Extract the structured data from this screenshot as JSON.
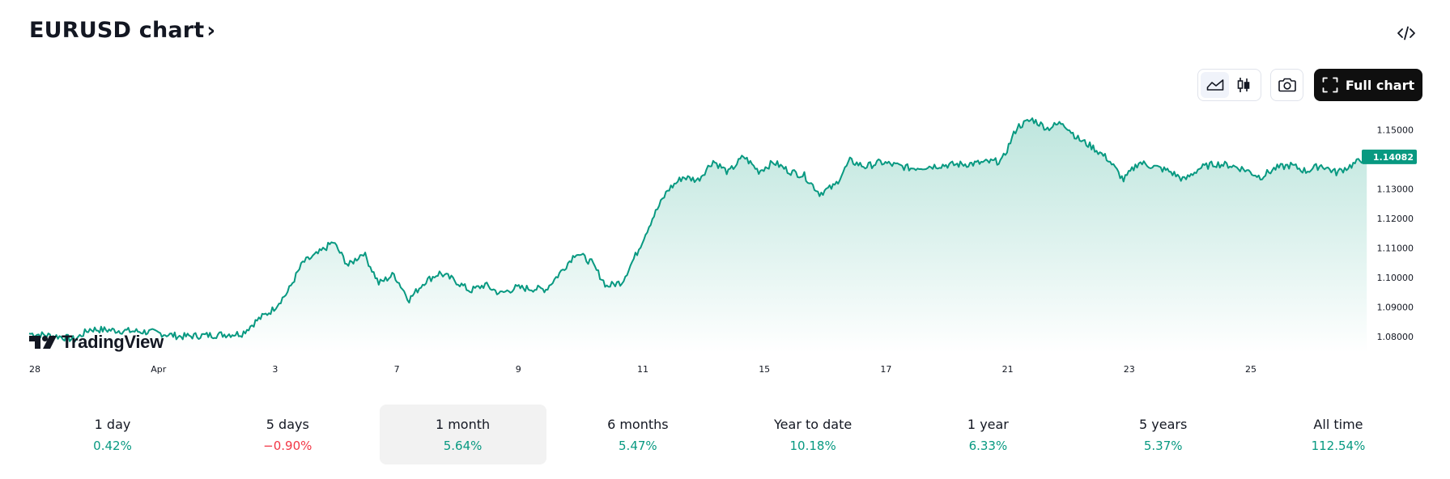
{
  "header": {
    "title": "EURUSD chart",
    "chevron": "›"
  },
  "toolbar": {
    "embed_icon": "code-icon",
    "line_chart_icon": "area-chart-icon",
    "candle_chart_icon": "candlestick-icon",
    "snapshot_icon": "camera-icon",
    "full_chart_label": "Full chart",
    "full_chart_icon": "fullscreen-icon"
  },
  "logo": {
    "text": "TradingView"
  },
  "colors": {
    "accent": "#089981",
    "negative": "#f23645",
    "area_top": "#b7e3da",
    "area_bottom": "#ffffff"
  },
  "chart_data": {
    "type": "area",
    "title": "",
    "y_ticks": [
      "1.15000",
      "1.13000",
      "1.12000",
      "1.11000",
      "1.10000",
      "1.09000",
      "1.08000"
    ],
    "x_ticks": [
      "28",
      "Apr",
      "3",
      "7",
      "9",
      "11",
      "15",
      "17",
      "21",
      "23",
      "25"
    ],
    "ylim": [
      1.0745,
      1.1545
    ],
    "last_price": 1.14082,
    "last_price_label": "1.14082",
    "grid": false,
    "series": [
      {
        "points": [
          [
            "2025-03-28",
            1.081
          ],
          [
            "2025-03-28 12:00",
            1.08
          ],
          [
            "2025-03-28 18:00",
            1.079
          ],
          [
            "2025-03-31",
            1.0825
          ],
          [
            "2025-04-01",
            1.0815
          ],
          [
            "2025-04-01 12:00",
            1.08
          ],
          [
            "2025-04-02",
            1.0805
          ],
          [
            "2025-04-02 12:00",
            1.081
          ],
          [
            "2025-04-02 18:00",
            1.0855
          ],
          [
            "2025-04-03",
            1.089
          ],
          [
            "2025-04-03 06:00",
            1.095
          ],
          [
            "2025-04-03 12:00",
            1.105
          ],
          [
            "2025-04-03 18:00",
            1.108
          ],
          [
            "2025-04-04",
            1.112
          ],
          [
            "2025-04-04 06:00",
            1.104
          ],
          [
            "2025-04-04 12:00",
            1.1085
          ],
          [
            "2025-04-04 18:00",
            1.098
          ],
          [
            "2025-04-07",
            1.101
          ],
          [
            "2025-04-07 06:00",
            1.0925
          ],
          [
            "2025-04-07 12:00",
            1.0985
          ],
          [
            "2025-04-07 18:00",
            1.1015
          ],
          [
            "2025-04-08",
            1.099
          ],
          [
            "2025-04-08 06:00",
            1.0955
          ],
          [
            "2025-04-08 12:00",
            1.0975
          ],
          [
            "2025-04-08 18:00",
            1.0945
          ],
          [
            "2025-04-09",
            1.0965
          ],
          [
            "2025-04-09 12:00",
            1.096
          ],
          [
            "2025-04-09 18:00",
            1.102
          ],
          [
            "2025-04-10",
            1.1085
          ],
          [
            "2025-04-10 06:00",
            1.105
          ],
          [
            "2025-04-10 12:00",
            1.097
          ],
          [
            "2025-04-10 18:00",
            1.0985
          ],
          [
            "2025-04-11",
            1.1085
          ],
          [
            "2025-04-11 06:00",
            1.12
          ],
          [
            "2025-04-11 12:00",
            1.1295
          ],
          [
            "2025-04-11 18:00",
            1.134
          ],
          [
            "2025-04-14",
            1.133
          ],
          [
            "2025-04-14 06:00",
            1.1395
          ],
          [
            "2025-04-14 12:00",
            1.1355
          ],
          [
            "2025-04-14 18:00",
            1.141
          ],
          [
            "2025-04-15",
            1.136
          ],
          [
            "2025-04-15 06:00",
            1.139
          ],
          [
            "2025-04-15 12:00",
            1.136
          ],
          [
            "2025-04-15 18:00",
            1.1345
          ],
          [
            "2025-04-16",
            1.1285
          ],
          [
            "2025-04-16 06:00",
            1.131
          ],
          [
            "2025-04-16 12:00",
            1.1395
          ],
          [
            "2025-04-16 18:00",
            1.1375
          ],
          [
            "2025-04-17",
            1.139
          ],
          [
            "2025-04-17 06:00",
            1.138
          ],
          [
            "2025-04-17 12:00",
            1.137
          ],
          [
            "2025-04-17 18:00",
            1.1375
          ],
          [
            "2025-04-18",
            1.138
          ],
          [
            "2025-04-18 12:00",
            1.1385
          ],
          [
            "2025-04-21",
            1.1395
          ],
          [
            "2025-04-21 06:00",
            1.151
          ],
          [
            "2025-04-21 12:00",
            1.1535
          ],
          [
            "2025-04-21 18:00",
            1.1505
          ],
          [
            "2025-04-22",
            1.1525
          ],
          [
            "2025-04-22 06:00",
            1.147
          ],
          [
            "2025-04-22 12:00",
            1.144
          ],
          [
            "2025-04-22 18:00",
            1.14
          ],
          [
            "2025-04-23",
            1.133
          ],
          [
            "2025-04-23 06:00",
            1.139
          ],
          [
            "2025-04-23 12:00",
            1.1375
          ],
          [
            "2025-04-23 18:00",
            1.136
          ],
          [
            "2025-04-24",
            1.133
          ],
          [
            "2025-04-24 06:00",
            1.137
          ],
          [
            "2025-04-24 12:00",
            1.1385
          ],
          [
            "2025-04-24 18:00",
            1.138
          ],
          [
            "2025-04-25",
            1.1365
          ],
          [
            "2025-04-25 06:00",
            1.134
          ],
          [
            "2025-04-25 12:00",
            1.137
          ],
          [
            "2025-04-25 18:00",
            1.138
          ],
          [
            "2025-04-28",
            1.136
          ],
          [
            "2025-04-28 06:00",
            1.138
          ],
          [
            "2025-04-28 12:00",
            1.1355
          ],
          [
            "2025-04-28 18:00",
            1.138
          ],
          [
            "2025-04-29",
            1.14082
          ]
        ]
      }
    ]
  },
  "periods": [
    {
      "label": "1 day",
      "value": "0.42%",
      "dir": "up",
      "active": false
    },
    {
      "label": "5 days",
      "value": "−0.90%",
      "dir": "down",
      "active": false
    },
    {
      "label": "1 month",
      "value": "5.64%",
      "dir": "up",
      "active": true
    },
    {
      "label": "6 months",
      "value": "5.47%",
      "dir": "up",
      "active": false
    },
    {
      "label": "Year to date",
      "value": "10.18%",
      "dir": "up",
      "active": false
    },
    {
      "label": "1 year",
      "value": "6.33%",
      "dir": "up",
      "active": false
    },
    {
      "label": "5 years",
      "value": "5.37%",
      "dir": "up",
      "active": false
    },
    {
      "label": "All time",
      "value": "112.54%",
      "dir": "up",
      "active": false
    }
  ]
}
